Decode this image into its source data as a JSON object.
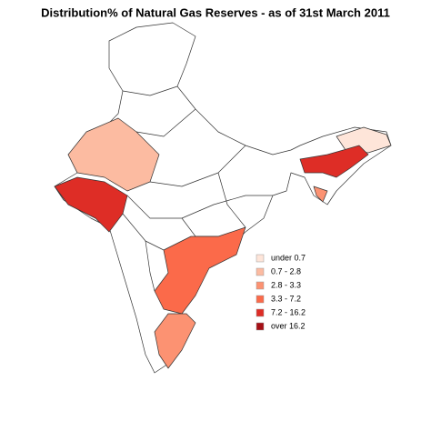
{
  "title": "Distribution% of Natural Gas Reserves - as of 31st March 2011",
  "legend": [
    {
      "label": "under 0.7",
      "color": "#fee5d9"
    },
    {
      "label": "0.7 - 2.8",
      "color": "#fcbba1"
    },
    {
      "label": "2.8 - 3.3",
      "color": "#fc9272"
    },
    {
      "label": "3.3 - 7.2",
      "color": "#fb6a4a"
    },
    {
      "label": "7.2 - 16.2",
      "color": "#de2d26"
    },
    {
      "label": "over 16.2",
      "color": "#a50f15"
    }
  ]
}
